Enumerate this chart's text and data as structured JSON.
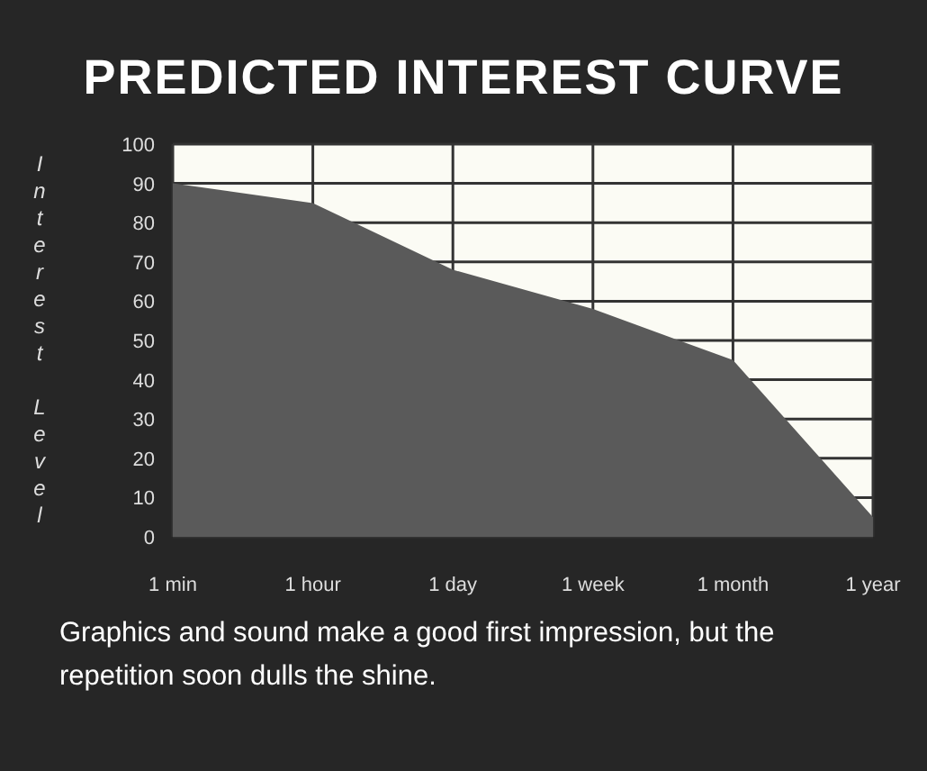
{
  "chart_data": {
    "type": "area",
    "title": "PREDICTED INTEREST CURVE",
    "ylabel": "Interest Level",
    "categories": [
      "1 min",
      "1 hour",
      "1 day",
      "1 week",
      "1 month",
      "1 year"
    ],
    "series": [
      {
        "color": "#5a5a5a",
        "values": [
          90,
          85,
          68,
          58,
          45,
          5
        ]
      }
    ],
    "ylim": [
      0,
      100
    ],
    "yticks": [
      0,
      10,
      20,
      30,
      40,
      50,
      60,
      70,
      80,
      90,
      100
    ],
    "grid": true,
    "annotations": [
      "Graphics and sound make a good first impression, but the repetition soon dulls the shine."
    ]
  }
}
